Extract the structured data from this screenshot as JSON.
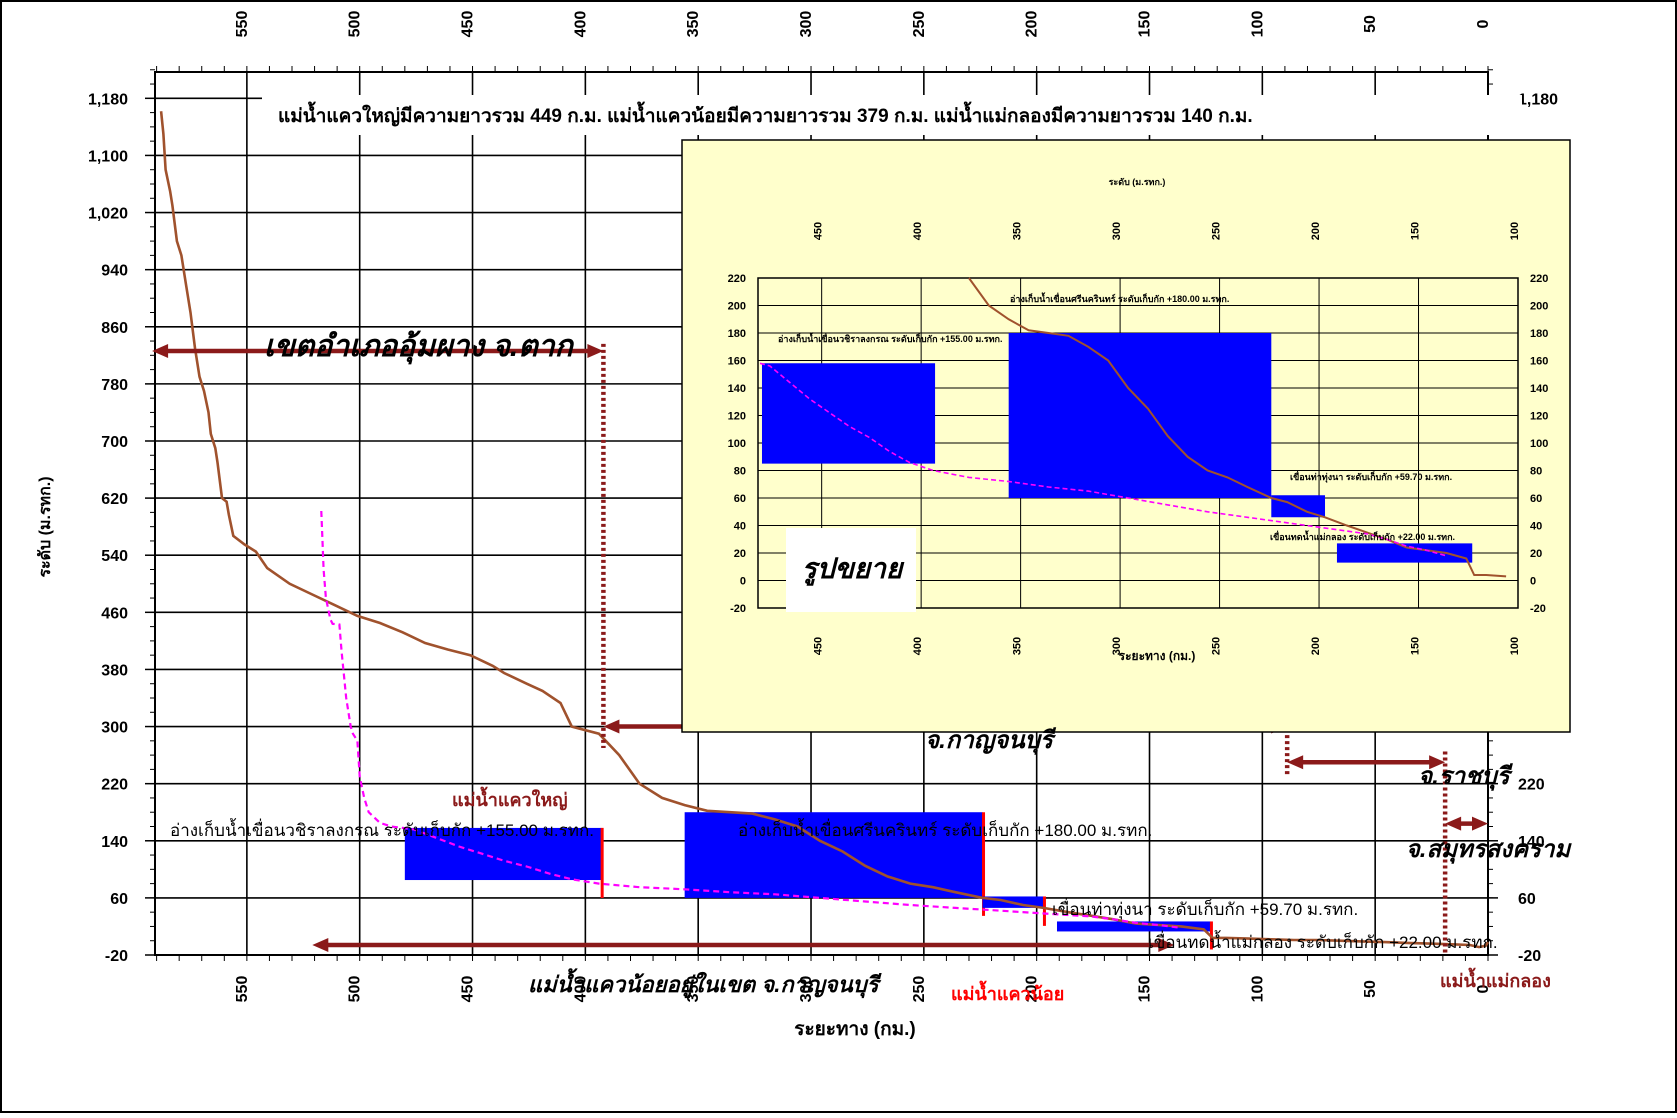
{
  "chart_data": [
    {
      "type": "line",
      "title": "แม่น้ำแควใหญ่มีความยาวรวม   449 ก.ม.  แม่น้ำแควน้อยมีความยาวรวม   379 ก.ม.  แม่น้ำแม่กลองมีความยาวรวม   140 ก.ม.",
      "xlabel": "ระยะทาง (กม.)",
      "ylabel": "ระดับ (ม.รทก.)",
      "x_reversed": true,
      "xlim": [
        590,
        0
      ],
      "ylim": [
        -20,
        1220
      ],
      "x_ticks": [
        "550",
        "500",
        "450",
        "400",
        "350",
        "300",
        "250",
        "200",
        "150",
        "100",
        "50",
        "0"
      ],
      "y_ticks": [
        "-20",
        "60",
        "140",
        "220",
        "300",
        "380",
        "460",
        "540",
        "620",
        "700",
        "780",
        "860",
        "940",
        "1,020",
        "1,100",
        "1,180"
      ],
      "grid": true,
      "series": [
        {
          "name": "แม่น้ำแควใหญ่",
          "color": "#a0522d",
          "points": [
            [
              588,
              1162
            ],
            [
              587,
              1130
            ],
            [
              586,
              1080
            ],
            [
              584,
              1050
            ],
            [
              583,
              1030
            ],
            [
              581,
              980
            ],
            [
              579,
              960
            ],
            [
              577,
              920
            ],
            [
              575,
              880
            ],
            [
              573,
              830
            ],
            [
              571,
              790
            ],
            [
              569,
              770
            ],
            [
              567,
              740
            ],
            [
              566,
              710
            ],
            [
              564,
              690
            ],
            [
              563,
              670
            ],
            [
              561,
              620
            ],
            [
              559,
              615
            ],
            [
              558,
              597
            ],
            [
              556,
              567
            ],
            [
              551,
              555
            ],
            [
              546,
              545
            ],
            [
              541,
              522
            ],
            [
              531,
              500
            ],
            [
              521,
              485
            ],
            [
              511,
              470
            ],
            [
              501,
              455
            ],
            [
              491,
              445
            ],
            [
              481,
              432
            ],
            [
              471,
              417
            ],
            [
              461,
              408
            ],
            [
              451,
              400
            ],
            [
              441,
              385
            ],
            [
              436,
              375
            ],
            [
              426,
              360
            ],
            [
              419,
              350
            ],
            [
              411,
              333
            ],
            [
              406,
              300
            ],
            [
              394,
              290
            ],
            [
              391,
              280
            ],
            [
              385,
              260
            ],
            [
              376,
              220
            ],
            [
              366,
              200
            ],
            [
              356,
              190
            ],
            [
              346,
              182
            ],
            [
              336,
              180
            ],
            [
              326,
              178
            ],
            [
              316,
              170
            ],
            [
              306,
              160
            ],
            [
              296,
              140
            ],
            [
              286,
              125
            ],
            [
              276,
              105
            ],
            [
              266,
              90
            ],
            [
              256,
              80
            ],
            [
              246,
              75
            ],
            [
              236,
              68
            ],
            [
              224,
              60
            ],
            [
              216,
              57
            ],
            [
              206,
              50
            ],
            [
              197,
              46
            ],
            [
              186,
              40
            ],
            [
              176,
              35
            ],
            [
              166,
              30
            ],
            [
              156,
              24
            ],
            [
              146,
              22
            ],
            [
              136,
              20
            ],
            [
              126,
              16
            ],
            [
              122,
              4
            ],
            [
              116,
              4
            ],
            [
              106,
              3
            ],
            [
              96,
              2
            ],
            [
              86,
              1
            ],
            [
              76,
              1
            ],
            [
              66,
              0
            ],
            [
              56,
              -1
            ],
            [
              46,
              -2
            ],
            [
              36,
              -3
            ],
            [
              26,
              -4
            ],
            [
              16,
              -5
            ],
            [
              8,
              -6
            ],
            [
              4,
              -9
            ],
            [
              1,
              -7
            ],
            [
              0,
              -2
            ]
          ]
        },
        {
          "name": "แม่น้ำแควน้อย",
          "color": "#ff00ff",
          "dashed": true,
          "points": [
            [
              517,
              602
            ],
            [
              516,
              520
            ],
            [
              515,
              480
            ],
            [
              513,
              450
            ],
            [
              512,
              444
            ],
            [
              509,
              443
            ],
            [
              508,
              405
            ],
            [
              506,
              340
            ],
            [
              504,
              300
            ],
            [
              503,
              290
            ],
            [
              501,
              280
            ],
            [
              500,
              230
            ],
            [
              498,
              200
            ],
            [
              496,
              180
            ],
            [
              491,
              165
            ],
            [
              486,
              160
            ],
            [
              481,
              158
            ],
            [
              476,
              156
            ],
            [
              466,
              144
            ],
            [
              456,
              132
            ],
            [
              446,
              122
            ],
            [
              436,
              112
            ],
            [
              426,
              104
            ],
            [
              416,
              94
            ],
            [
              406,
              86
            ],
            [
              394,
              80
            ],
            [
              376,
              75
            ],
            [
              356,
              72
            ],
            [
              336,
              68
            ],
            [
              316,
              65
            ],
            [
              296,
              60
            ],
            [
              276,
              55
            ],
            [
              256,
              50
            ],
            [
              236,
              46
            ],
            [
              216,
              42
            ],
            [
              196,
              38
            ],
            [
              176,
              34
            ],
            [
              166,
              30
            ],
            [
              156,
              25
            ],
            [
              146,
              22
            ],
            [
              136,
              18
            ]
          ]
        }
      ],
      "reservoirs": [
        {
          "label": "อ่างเก็บน้ำเขื่อนวชิราลงกรณ  ระดับเก็บกัก +155.00  ม.รทก.",
          "x_start": 480,
          "x_end": 393,
          "y_bottom": 85,
          "y_top": 158,
          "color": "#0000ff"
        },
        {
          "label": "อ่างเก็บน้ำเขื่อนศรีนครินทร์  ระดับเก็บกัก +180.00  ม.รทก.",
          "x_start": 356,
          "x_end": 224,
          "y_bottom": 60,
          "y_top": 180,
          "color": "#0000ff"
        },
        {
          "label": "เขื่อนท่าทุ่งนา  ระดับเก็บกัก +59.70  ม.รทก.",
          "x_start": 224,
          "x_end": 197,
          "y_bottom": 46,
          "y_top": 62,
          "color": "#0000ff"
        },
        {
          "label": "เขื่อนทดน้ำแม่กลอง  ระดับเก็บกัก +22.00  ม.รทก.",
          "x_start": 191,
          "x_end": 123,
          "y_bottom": 13,
          "y_top": 27,
          "color": "#0000ff"
        }
      ],
      "region_arrows": [
        {
          "label": "เขตอำเภออุ้มผาง  จ.ตาก",
          "x_start": 592,
          "x_end": 392,
          "y": 826
        },
        {
          "label": "จ.กาญจนบุรี",
          "x_start": 392,
          "x_end": 89,
          "y": 300
        },
        {
          "label": "จ.ราชบุรี",
          "x_start": 89,
          "x_end": 19,
          "y": 250
        },
        {
          "label": "จ.สมุทรสงคราม",
          "x_start": 19,
          "x_end": 0,
          "y": 164
        },
        {
          "label": "แม่น้ำแควน้อยอยู่ในเขต จ.กาญจนบุรี",
          "x_start": 521,
          "x_end": 139,
          "y": -6
        }
      ],
      "boundaries_x": [
        392,
        89,
        19
      ],
      "annotations": [
        {
          "text": "แม่น้ำแควใหญ่",
          "color": "#8b1a1a"
        },
        {
          "text": "แม่น้ำแควน้อย",
          "color": "#ff0000"
        },
        {
          "text": "แม่น้ำแม่กลอง",
          "color": "#8b1a1a"
        }
      ]
    },
    {
      "type": "line",
      "title": "ระดับ (ม.รทก.)",
      "xlabel": "ระยะทาง (กม.)",
      "inset_label": "รูปขยาย",
      "x_reversed": true,
      "xlim": [
        482,
        100
      ],
      "ylim": [
        -20,
        220
      ],
      "x_ticks": [
        "450",
        "400",
        "350",
        "300",
        "250",
        "200",
        "150",
        "100"
      ],
      "y_ticks": [
        "-20",
        "0",
        "20",
        "40",
        "60",
        "80",
        "100",
        "120",
        "140",
        "160",
        "180",
        "200",
        "220"
      ],
      "grid": true,
      "background": "#ffffcc",
      "reservoir_labels": [
        "อ่างเก็บน้ำเขื่อนวชิราลงกรณ ระดับเก็บกัก +155.00 ม.รทก.",
        "อ่างเก็บน้ำเขื่อนศรีนครินทร์ ระดับเก็บกัก +180.00 ม.รทก.",
        "เขื่อนท่าทุ่งนา ระดับเก็บกัก +59.70 ม.รทก.",
        "เขื่อนทดน้ำแม่กลอง ระดับเก็บกัก +22.00 ม.รทก."
      ]
    }
  ]
}
